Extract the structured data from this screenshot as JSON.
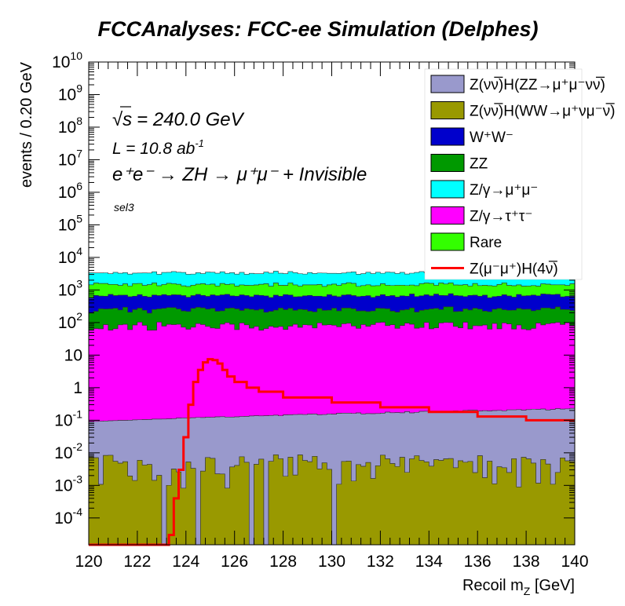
{
  "chart_data": {
    "type": "area",
    "title": "FCCAnalyses: FCC-ee Simulation (Delphes)",
    "xlabel": "Recoil m_Z [GeV]",
    "ylabel": "events / 0.20 GeV",
    "xlim": [
      120,
      140
    ],
    "ylim": [
      1.5e-05,
      10000000000
    ],
    "yscale": "log",
    "bin_width": 0.2,
    "x_ticks": [
      "120",
      "122",
      "124",
      "126",
      "128",
      "130",
      "132",
      "134",
      "136",
      "138",
      "140"
    ],
    "y_ticks": [
      {
        "base": "10",
        "exp": "-4",
        "value": 0.0001
      },
      {
        "base": "10",
        "exp": "-3",
        "value": 0.001
      },
      {
        "base": "10",
        "exp": "-2",
        "value": 0.01
      },
      {
        "base": "10",
        "exp": "-1",
        "value": 0.1
      },
      {
        "base": "1",
        "exp": "",
        "value": 1
      },
      {
        "base": "10",
        "exp": "",
        "value": 10
      },
      {
        "base": "10",
        "exp": "2",
        "value": 100
      },
      {
        "base": "10",
        "exp": "3",
        "value": 1000
      },
      {
        "base": "10",
        "exp": "4",
        "value": 10000
      },
      {
        "base": "10",
        "exp": "5",
        "value": 100000
      },
      {
        "base": "10",
        "exp": "6",
        "value": 1000000
      },
      {
        "base": "10",
        "exp": "7",
        "value": 10000000
      },
      {
        "base": "10",
        "exp": "8",
        "value": 100000000
      },
      {
        "base": "10",
        "exp": "9",
        "value": 1000000000
      },
      {
        "base": "10",
        "exp": "10",
        "value": 10000000000
      }
    ],
    "annotations": {
      "sqrt_s_label": "s",
      "sqrt_s_value": "= 240.0 GeV",
      "lumi_prefix": "L = 10.8 ab",
      "lumi_exp": "-1",
      "process": "e⁺e⁻ → ZH → μ⁺μ⁻ + Invisible",
      "selection": "sel3"
    },
    "stacked_series": [
      {
        "name": "Z(νν̅)H(ZZ→μ⁺μ⁻νν̅)",
        "color": "#9999cc",
        "typical": 0.16,
        "range_low": 0.09,
        "range_high": 0.22
      },
      {
        "name": "Z(νν̅)H(WW→μ⁺νμ⁻ν̅)",
        "color": "#999900",
        "typical": 0.004,
        "range_low": 0.0003,
        "range_high": 0.01
      },
      {
        "name": "W⁺W⁻",
        "color": "#0000cc",
        "typical": 400
      },
      {
        "name": "ZZ",
        "color": "#009900",
        "typical": 150
      },
      {
        "name": "Z/γ→μ⁺μ⁻",
        "color": "#00ffff",
        "typical": 1800
      },
      {
        "name": "Z/γ→τ⁺τ⁻",
        "color": "#ff00ff",
        "typical": 80
      },
      {
        "name": "Rare",
        "color": "#33ff00",
        "typical": 800
      }
    ],
    "signal": {
      "name": "Z(μ⁻μ⁺)H(4ν̅)",
      "color": "#ff0000",
      "x": [
        120,
        123.2,
        123.3,
        123.5,
        123.7,
        123.9,
        124.1,
        124.3,
        124.5,
        124.7,
        124.9,
        125.1,
        125.3,
        125.5,
        125.7,
        126.0,
        126.5,
        127.0,
        128.0,
        130.0,
        132.0,
        134.0,
        136.0,
        138.0,
        140.0
      ],
      "y": [
        1e-05,
        1e-05,
        3e-05,
        0.0004,
        0.003,
        0.03,
        0.3,
        1.5,
        3.5,
        6.0,
        7.5,
        7.0,
        5.5,
        3.5,
        2.2,
        1.5,
        1.0,
        0.75,
        0.5,
        0.35,
        0.25,
        0.18,
        0.13,
        0.1,
        0.08
      ]
    },
    "legend_position": "top-right"
  }
}
